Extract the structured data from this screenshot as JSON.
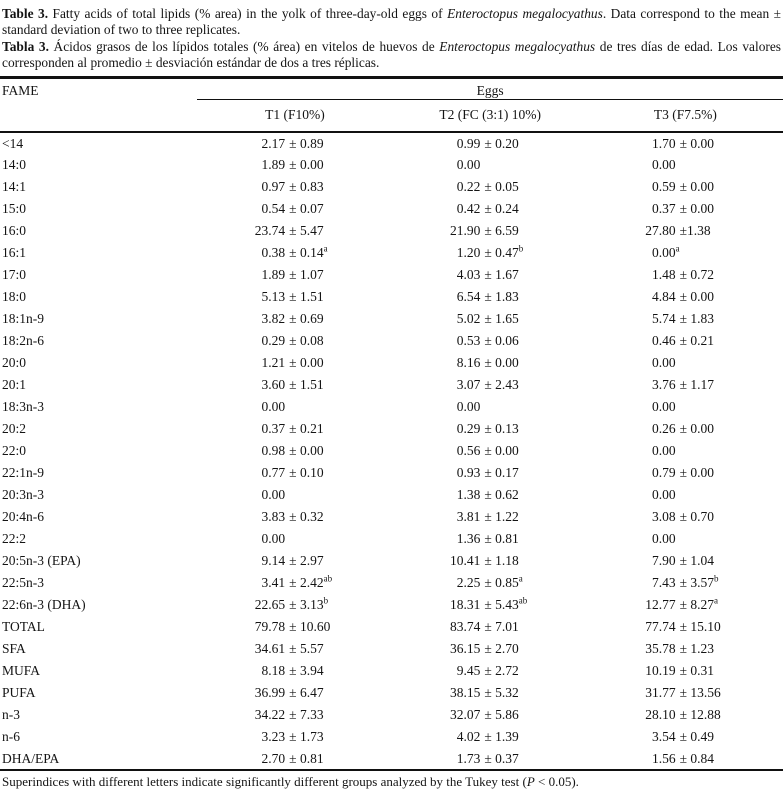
{
  "caption_en": {
    "label": "Table 3.",
    "before_species": " Fatty acids of total lipids (% area) in the yolk of three-day-old eggs of ",
    "species": "Enteroctopus megalocyathus",
    "after_species": ". Data correspond to the mean ± standard deviation of two to three replicates."
  },
  "caption_es": {
    "label": "Tabla 3.",
    "before_species": " Ácidos grasos de los lípidos totales (% área) en vitelos de huevos de ",
    "species": "Enteroctopus megalocyathus",
    "after_species": " de tres días de edad. Los valores corresponden al promedio ± desviación estándar de dos a tres réplicas."
  },
  "table": {
    "col_fame": "FAME",
    "group_header": "Eggs",
    "columns": [
      "T1 (F10%)",
      "T2 (FC (3:1) 10%)",
      "T3 (F7.5%)"
    ],
    "rows": [
      {
        "label": "<14",
        "c1": {
          "m": "2.17",
          "pm": "± 0.89"
        },
        "c2": {
          "m": "0.99",
          "pm": "± 0.20"
        },
        "c3": {
          "m": "1.70",
          "pm": "± 0.00"
        }
      },
      {
        "label": "14:0",
        "c1": {
          "m": "1.89",
          "pm": "± 0.00"
        },
        "c2": {
          "m": "0.00",
          "pm": ""
        },
        "c3": {
          "m": "0.00",
          "pm": ""
        }
      },
      {
        "label": "14:1",
        "c1": {
          "m": "0.97",
          "pm": "± 0.83"
        },
        "c2": {
          "m": "0.22",
          "pm": "± 0.05"
        },
        "c3": {
          "m": "0.59",
          "pm": "± 0.00"
        }
      },
      {
        "label": "15:0",
        "c1": {
          "m": "0.54",
          "pm": "± 0.07"
        },
        "c2": {
          "m": "0.42",
          "pm": "± 0.24"
        },
        "c3": {
          "m": "0.37",
          "pm": "± 0.00"
        }
      },
      {
        "label": "16:0",
        "c1": {
          "m": "23.74",
          "pm": "± 5.47"
        },
        "c2": {
          "m": "21.90",
          "pm": "± 6.59"
        },
        "c3": {
          "m": "27.80",
          "pm": "±1.38"
        }
      },
      {
        "label": "16:1",
        "c1": {
          "m": "0.38",
          "pm": "± 0.14",
          "sup": "a"
        },
        "c2": {
          "m": "1.20",
          "pm": "± 0.47",
          "sup": "b"
        },
        "c3": {
          "m": "0.00",
          "pm": "",
          "sup": "a"
        }
      },
      {
        "label": "17:0",
        "c1": {
          "m": "1.89",
          "pm": "± 1.07"
        },
        "c2": {
          "m": "4.03",
          "pm": "± 1.67"
        },
        "c3": {
          "m": "1.48",
          "pm": "± 0.72"
        }
      },
      {
        "label": "18:0",
        "c1": {
          "m": "5.13",
          "pm": "± 1.51"
        },
        "c2": {
          "m": "6.54",
          "pm": "± 1.83"
        },
        "c3": {
          "m": "4.84",
          "pm": "± 0.00"
        }
      },
      {
        "label": "18:1n-9",
        "c1": {
          "m": "3.82",
          "pm": "± 0.69"
        },
        "c2": {
          "m": "5.02",
          "pm": "± 1.65"
        },
        "c3": {
          "m": "5.74",
          "pm": "± 1.83"
        }
      },
      {
        "label": "18:2n-6",
        "c1": {
          "m": "0.29",
          "pm": "± 0.08"
        },
        "c2": {
          "m": "0.53",
          "pm": "± 0.06"
        },
        "c3": {
          "m": "0.46",
          "pm": "± 0.21"
        }
      },
      {
        "label": "20:0",
        "c1": {
          "m": "1.21",
          "pm": "± 0.00"
        },
        "c2": {
          "m": "8.16",
          "pm": "± 0.00"
        },
        "c3": {
          "m": "0.00",
          "pm": ""
        }
      },
      {
        "label": "20:1",
        "c1": {
          "m": "3.60",
          "pm": "± 1.51"
        },
        "c2": {
          "m": "3.07",
          "pm": "± 2.43"
        },
        "c3": {
          "m": "3.76",
          "pm": "± 1.17"
        }
      },
      {
        "label": "18:3n-3",
        "c1": {
          "m": "0.00",
          "pm": ""
        },
        "c2": {
          "m": "0.00",
          "pm": ""
        },
        "c3": {
          "m": "0.00",
          "pm": ""
        }
      },
      {
        "label": "20:2",
        "c1": {
          "m": "0.37",
          "pm": "± 0.21"
        },
        "c2": {
          "m": "0.29",
          "pm": "± 0.13"
        },
        "c3": {
          "m": "0.26",
          "pm": "± 0.00"
        }
      },
      {
        "label": "22:0",
        "c1": {
          "m": "0.98",
          "pm": "± 0.00"
        },
        "c2": {
          "m": "0.56",
          "pm": "± 0.00"
        },
        "c3": {
          "m": "0.00",
          "pm": ""
        }
      },
      {
        "label": "22:1n-9",
        "c1": {
          "m": "0.77",
          "pm": "± 0.10"
        },
        "c2": {
          "m": "0.93",
          "pm": "± 0.17"
        },
        "c3": {
          "m": "0.79",
          "pm": "± 0.00"
        }
      },
      {
        "label": "20:3n-3",
        "c1": {
          "m": "0.00",
          "pm": ""
        },
        "c2": {
          "m": "1.38",
          "pm": "± 0.62"
        },
        "c3": {
          "m": "0.00",
          "pm": ""
        }
      },
      {
        "label": "20:4n-6",
        "c1": {
          "m": "3.83",
          "pm": "± 0.32"
        },
        "c2": {
          "m": "3.81",
          "pm": "± 1.22"
        },
        "c3": {
          "m": "3.08",
          "pm": "± 0.70"
        }
      },
      {
        "label": "22:2",
        "c1": {
          "m": "0.00",
          "pm": ""
        },
        "c2": {
          "m": "1.36",
          "pm": "± 0.81"
        },
        "c3": {
          "m": "0.00",
          "pm": ""
        }
      },
      {
        "label": "20:5n-3 (EPA)",
        "c1": {
          "m": "9.14",
          "pm": "± 2.97"
        },
        "c2": {
          "m": "10.41",
          "pm": "± 1.18"
        },
        "c3": {
          "m": "7.90",
          "pm": "± 1.04"
        }
      },
      {
        "label": "22:5n-3",
        "c1": {
          "m": "3.41",
          "pm": "± 2.42",
          "sup": "ab"
        },
        "c2": {
          "m": "2.25",
          "pm": "± 0.85",
          "sup": "a"
        },
        "c3": {
          "m": "7.43",
          "pm": "± 3.57",
          "sup": "b"
        }
      },
      {
        "label": "22:6n-3 (DHA)",
        "c1": {
          "m": "22.65",
          "pm": "± 3.13",
          "sup": "b"
        },
        "c2": {
          "m": "18.31",
          "pm": "± 5.43",
          "sup": "ab"
        },
        "c3": {
          "m": "12.77",
          "pm": "± 8.27",
          "sup": "a"
        }
      },
      {
        "label": "TOTAL",
        "c1": {
          "m": "79.78",
          "pm": "± 10.60"
        },
        "c2": {
          "m": "83.74",
          "pm": "± 7.01"
        },
        "c3": {
          "m": "77.74",
          "pm": "± 15.10"
        }
      },
      {
        "label": "SFA",
        "c1": {
          "m": "34.61",
          "pm": "± 5.57"
        },
        "c2": {
          "m": "36.15",
          "pm": "± 2.70"
        },
        "c3": {
          "m": "35.78",
          "pm": "± 1.23"
        }
      },
      {
        "label": "MUFA",
        "c1": {
          "m": "8.18",
          "pm": "± 3.94"
        },
        "c2": {
          "m": "9.45",
          "pm": "± 2.72"
        },
        "c3": {
          "m": "10.19",
          "pm": "± 0.31"
        }
      },
      {
        "label": "PUFA",
        "c1": {
          "m": "36.99",
          "pm": "± 6.47"
        },
        "c2": {
          "m": "38.15",
          "pm": "± 5.32"
        },
        "c3": {
          "m": "31.77",
          "pm": "± 13.56"
        }
      },
      {
        "label": "n-3",
        "c1": {
          "m": "34.22",
          "pm": "± 7.33"
        },
        "c2": {
          "m": "32.07",
          "pm": "± 5.86"
        },
        "c3": {
          "m": "28.10",
          "pm": "± 12.88"
        }
      },
      {
        "label": "n-6",
        "c1": {
          "m": "3.23",
          "pm": "± 1.73"
        },
        "c2": {
          "m": "4.02",
          "pm": "± 1.39"
        },
        "c3": {
          "m": "3.54",
          "pm": "± 0.49"
        }
      },
      {
        "label": "DHA/EPA",
        "c1": {
          "m": "2.70",
          "pm": "± 0.81"
        },
        "c2": {
          "m": "1.73",
          "pm": "± 0.37"
        },
        "c3": {
          "m": "1.56",
          "pm": "± 0.84"
        }
      }
    ]
  },
  "footnote": {
    "before_p": "Superindices with different letters indicate significantly different groups analyzed by the Tukey test (",
    "p": "P",
    "after_p": " < 0.05)."
  }
}
